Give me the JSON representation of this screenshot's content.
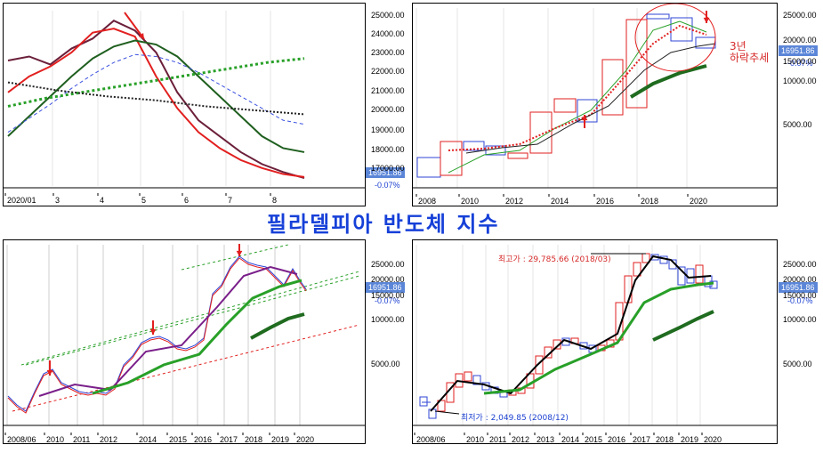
{
  "title": "필라델피아 반도체 지수",
  "common": {
    "last_value": "16951.86",
    "change_pct": "-0.07%"
  },
  "chart_data": [
    {
      "type": "line",
      "panel": "top-left",
      "x_ticks": [
        "2020/01",
        "3",
        "4",
        "5",
        "6",
        "7",
        "8"
      ],
      "y_ticks": [
        "25000.00",
        "24000.00",
        "23000.00",
        "22000.00",
        "21000.00",
        "20000.00",
        "19000.00",
        "18000.00",
        "17000.00"
      ],
      "ylim": [
        16500,
        25300
      ],
      "series": [
        {
          "color": "#6b1f3a",
          "values": [
            22800,
            23000,
            22600,
            23400,
            23900,
            24800,
            24300,
            23200,
            21200,
            19800,
            19000,
            18200,
            17600,
            17200,
            16900
          ]
        },
        {
          "color": "#e21f1f",
          "values": [
            21200,
            22000,
            22500,
            23200,
            24200,
            24400,
            24000,
            22000,
            20400,
            19200,
            18400,
            17800,
            17400,
            17100,
            16950
          ]
        },
        {
          "color": "#1f5f1f",
          "values": [
            19000,
            20000,
            21000,
            22000,
            22900,
            23500,
            23800,
            23600,
            23000,
            22000,
            21000,
            20000,
            19000,
            18400,
            18200
          ]
        },
        {
          "color": "#3a4fe0",
          "values": [
            19200,
            19900,
            20600,
            21400,
            22100,
            22700,
            23100,
            23000,
            22700,
            22200,
            21600,
            21000,
            20400,
            19800,
            19600
          ]
        },
        {
          "color": "#28a028",
          "values": [
            20500,
            20900,
            21200,
            21500,
            21800,
            22100,
            22400,
            22700,
            22900
          ]
        },
        {
          "color": "#222222",
          "values": [
            21700,
            21300,
            21000,
            20800,
            20500,
            20300,
            20100
          ]
        }
      ]
    },
    {
      "type": "bar",
      "panel": "top-right",
      "x_ticks": [
        "2008",
        "2010",
        "2012",
        "2014",
        "2016",
        "2018",
        "2020"
      ],
      "y_ticks": [
        "25000.00",
        "20000.00",
        "15000.00",
        "10000.00",
        "5000.00"
      ],
      "annotation": "3년\n하락추세"
    },
    {
      "type": "line",
      "panel": "bottom-left",
      "x_ticks": [
        "2008/06",
        "2010",
        "2011",
        "2012",
        "2014",
        "2015",
        "2016",
        "2017",
        "2018",
        "2019",
        "2020"
      ],
      "y_ticks": [
        "25000.00",
        "20000.00",
        "15000.00",
        "10000.00",
        "5000.00"
      ]
    },
    {
      "type": "bar",
      "panel": "bottom-right",
      "x_ticks": [
        "2008/06",
        "2010",
        "2011",
        "2012",
        "2013",
        "2014",
        "2015",
        "2016",
        "2017",
        "2018",
        "2019",
        "2020"
      ],
      "y_ticks": [
        "25000.00",
        "20000.00",
        "15000.00",
        "10000.00",
        "5000.00"
      ],
      "high_label": "최고가 : 29,785.66 (2018/03)",
      "low_label": "최저가 : 2,049.85 (2008/12)"
    }
  ]
}
